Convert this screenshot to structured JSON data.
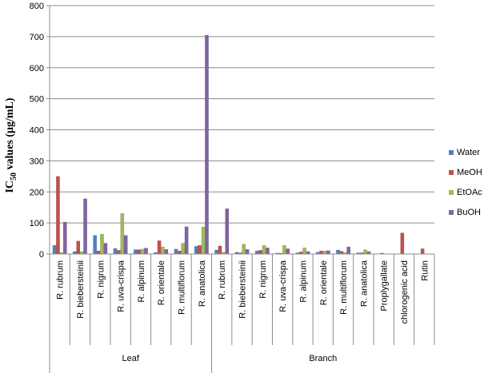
{
  "chart_data": {
    "type": "bar",
    "ylabel": "IC50 values (μg/mL)",
    "ylim": [
      0,
      800
    ],
    "yticks": [
      0,
      100,
      200,
      300,
      400,
      500,
      600,
      700,
      800
    ],
    "grid": true,
    "legend_position": "right",
    "groups": [
      {
        "label": "Leaf",
        "count": 8
      },
      {
        "label": "Branch",
        "count": 11
      }
    ],
    "categories": [
      "R. rubrum",
      "R. biebersteinii",
      "R. nigrum",
      "R. uva-crispa",
      "R. alpinum",
      "R. orientale",
      "R. multiflorum",
      "R. anatolica",
      "R. rubrum",
      "R. biebersteinii",
      "R. nigrum",
      "R. uva-crispa",
      "R. alpinum",
      "R. orientale",
      "R. multiflorum",
      "R. anatolica",
      "Proplygallate",
      "chlorogenic acid",
      "Rutin"
    ],
    "series": [
      {
        "name": "Water",
        "color": "#4F81BD",
        "values": [
          28,
          8,
          60,
          18,
          14,
          5,
          16,
          25,
          13,
          6,
          10,
          3,
          4,
          6,
          13,
          4,
          null,
          null,
          null
        ]
      },
      {
        "name": "MeOH",
        "color": "#C0504D",
        "values": [
          250,
          42,
          10,
          12,
          14,
          43,
          10,
          28,
          26,
          4,
          12,
          3,
          7,
          10,
          9,
          4,
          3,
          68,
          17
        ]
      },
      {
        "name": "EtOAc",
        "color": "#9BBB59",
        "values": [
          5,
          8,
          64,
          131,
          16,
          23,
          35,
          87,
          6,
          32,
          28,
          28,
          20,
          10,
          5,
          14,
          null,
          null,
          null
        ]
      },
      {
        "name": "BuOH",
        "color": "#8064A2",
        "values": [
          103,
          178,
          35,
          60,
          19,
          15,
          88,
          705,
          146,
          15,
          20,
          17,
          8,
          11,
          23,
          8,
          null,
          null,
          null
        ]
      }
    ]
  }
}
